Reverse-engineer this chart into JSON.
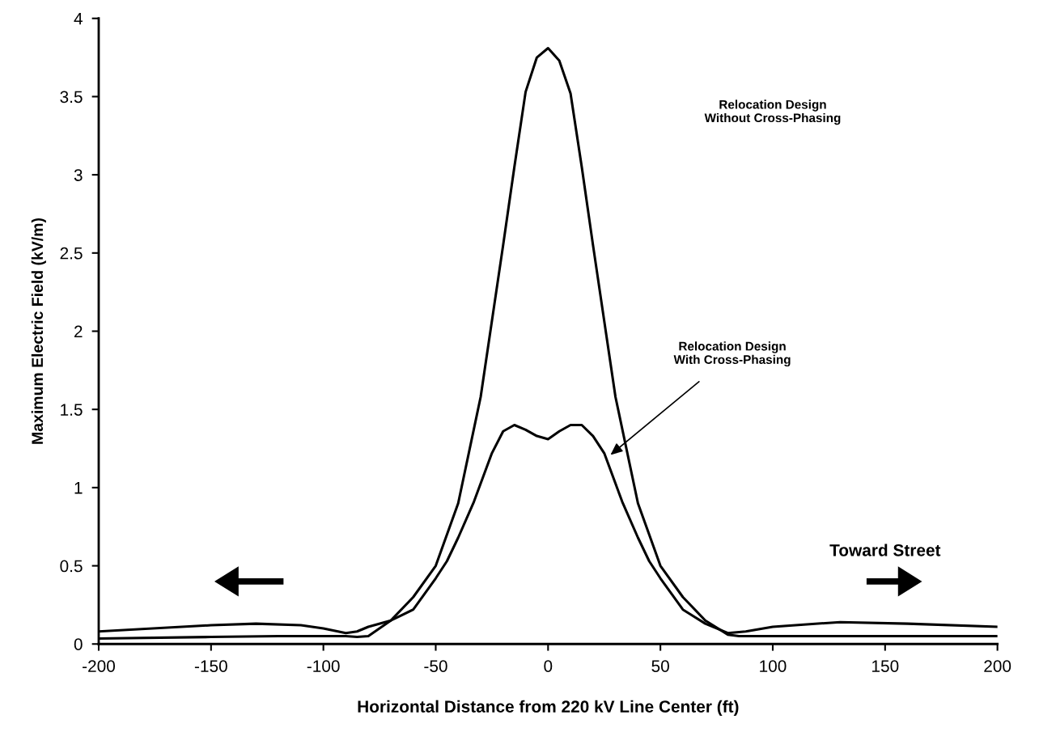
{
  "chart_data": {
    "type": "line",
    "xlabel": "Horizontal Distance from 220 kV Line Center (ft)",
    "ylabel": "Maximum Electric Field (kV/m)",
    "xlim": [
      -200,
      200
    ],
    "xticks": [
      -200,
      -150,
      -100,
      -50,
      0,
      50,
      100,
      150,
      200
    ],
    "ylim": [
      0,
      4
    ],
    "yticks": [
      0,
      0.5,
      1,
      1.5,
      2,
      2.5,
      3,
      3.5,
      4
    ],
    "grid": false,
    "legend": false,
    "marker": "none",
    "line_style": "solid",
    "series": [
      {
        "color": "#000000",
        "x": [
          -200,
          -150,
          -120,
          -100,
          -90,
          -85,
          -80,
          -70,
          -60,
          -50,
          -40,
          -30,
          -20,
          -15,
          -10,
          -5,
          0,
          5,
          10,
          15,
          20,
          30,
          40,
          50,
          60,
          70,
          80,
          85,
          90,
          100,
          150,
          200
        ],
        "values": [
          0.035,
          0.045,
          0.05,
          0.05,
          0.05,
          0.045,
          0.05,
          0.15,
          0.3,
          0.5,
          0.9,
          1.58,
          2.55,
          3.05,
          3.53,
          3.75,
          3.81,
          3.73,
          3.52,
          3.05,
          2.55,
          1.58,
          0.9,
          0.5,
          0.3,
          0.15,
          0.06,
          0.05,
          0.05,
          0.05,
          0.05,
          0.05
        ]
      },
      {
        "color": "#000000",
        "x": [
          -200,
          -150,
          -130,
          -110,
          -100,
          -90,
          -85,
          -80,
          -70,
          -60,
          -50,
          -45,
          -40,
          -33,
          -25,
          -20,
          -15,
          -10,
          -5,
          0,
          5,
          10,
          15,
          20,
          25,
          33,
          40,
          45,
          50,
          60,
          70,
          80,
          88,
          100,
          130,
          160,
          200
        ],
        "values": [
          0.08,
          0.12,
          0.13,
          0.12,
          0.1,
          0.07,
          0.08,
          0.11,
          0.15,
          0.22,
          0.42,
          0.53,
          0.68,
          0.91,
          1.22,
          1.36,
          1.4,
          1.37,
          1.33,
          1.31,
          1.36,
          1.4,
          1.4,
          1.33,
          1.22,
          0.91,
          0.68,
          0.53,
          0.42,
          0.22,
          0.13,
          0.07,
          0.08,
          0.11,
          0.14,
          0.13,
          0.11
        ]
      }
    ],
    "annotations": [
      "Relocation Design\nWithout Cross-Phasing",
      {
        "text": "Relocation Design\nWith Cross-Phasing",
        "x": 27,
        "y": 1.2
      },
      "Toward Street"
    ]
  }
}
